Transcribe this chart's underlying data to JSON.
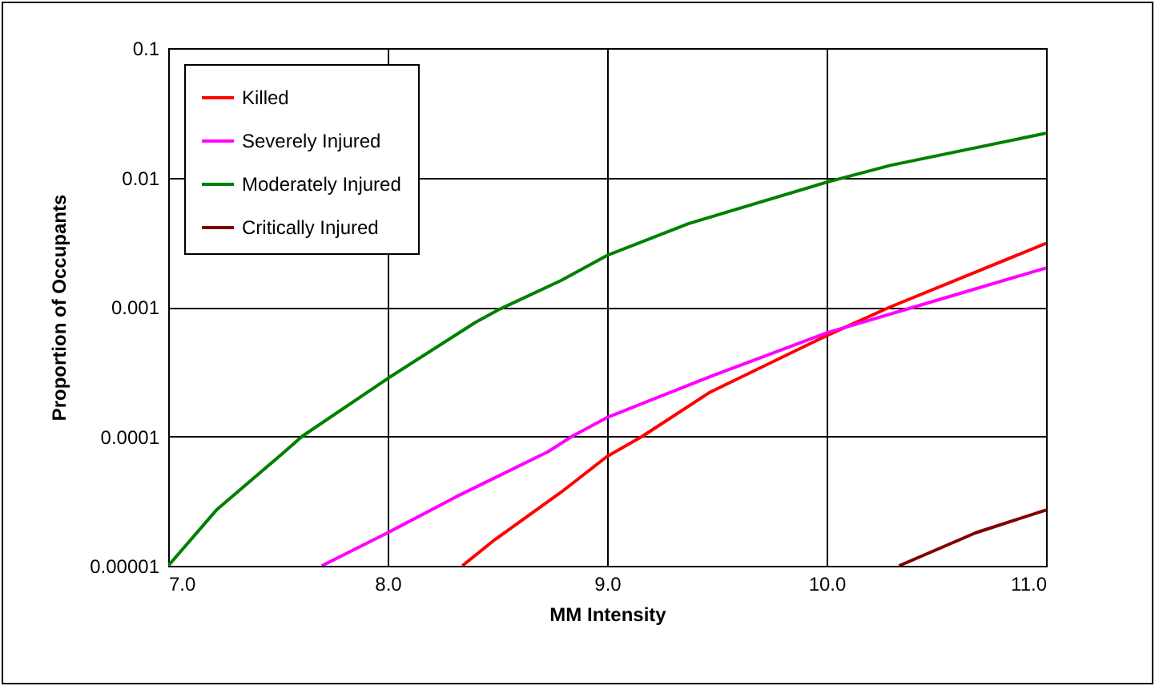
{
  "chart_data": {
    "type": "line",
    "xlabel": "MM Intensity",
    "ylabel": "Proportion of Occupants",
    "log": "y",
    "grid": true,
    "legend": "top left",
    "marker": "none",
    "line_style": "solid",
    "xlim": [
      7.0,
      11.0
    ],
    "xticks": [
      {
        "value": 7,
        "label": "7.0"
      },
      {
        "value": 8,
        "label": "8.0"
      },
      {
        "value": 9,
        "label": "9.0"
      },
      {
        "value": 10,
        "label": "10.0"
      },
      {
        "value": 11,
        "label": "11.0"
      }
    ],
    "ylim": [
      1e-05,
      0.1
    ],
    "yticks": [
      {
        "value": 1e-05,
        "label": "0.00001"
      },
      {
        "value": 0.0001,
        "label": "0.0001"
      },
      {
        "value": 0.001,
        "label": "0.001"
      },
      {
        "value": 0.01,
        "label": "0.01"
      },
      {
        "value": 0.1,
        "label": "0.1"
      }
    ],
    "series": [
      {
        "name": "Killed",
        "color": "#ff0000",
        "x": [
          8.34,
          8.49,
          8.79,
          9.0,
          9.16,
          9.47,
          10.0,
          10.29,
          11.0
        ],
        "values": [
          1e-05,
          1.6e-05,
          3.7e-05,
          7e-05,
          0.0001,
          0.00022,
          0.0006,
          0.001,
          0.0031
        ]
      },
      {
        "name": "Severely Injured",
        "color": "#ff00ff",
        "x": [
          7.7,
          8.0,
          8.31,
          8.73,
          8.84,
          9.0,
          9.47,
          10.0,
          10.4,
          11.0
        ],
        "values": [
          1e-05,
          1.8e-05,
          3.4e-05,
          7.6e-05,
          0.0001,
          0.00014,
          0.00029,
          0.00063,
          0.001,
          0.002
        ]
      },
      {
        "name": "Moderately Injured",
        "color": "#008000",
        "x": [
          7.0,
          7.22,
          7.53,
          7.61,
          8.0,
          8.4,
          8.51,
          8.79,
          9.0,
          9.37,
          10.0,
          10.29,
          11.0
        ],
        "values": [
          1e-05,
          2.7e-05,
          7.6e-05,
          0.0001,
          0.00028,
          0.00076,
          0.00096,
          0.0016,
          0.0025,
          0.0044,
          0.0092,
          0.0124,
          0.022
        ]
      },
      {
        "name": "Critically Injured",
        "color": "#800000",
        "x": [
          10.33,
          10.68,
          11.0
        ],
        "values": [
          1e-05,
          1.8e-05,
          2.7e-05
        ]
      }
    ]
  }
}
